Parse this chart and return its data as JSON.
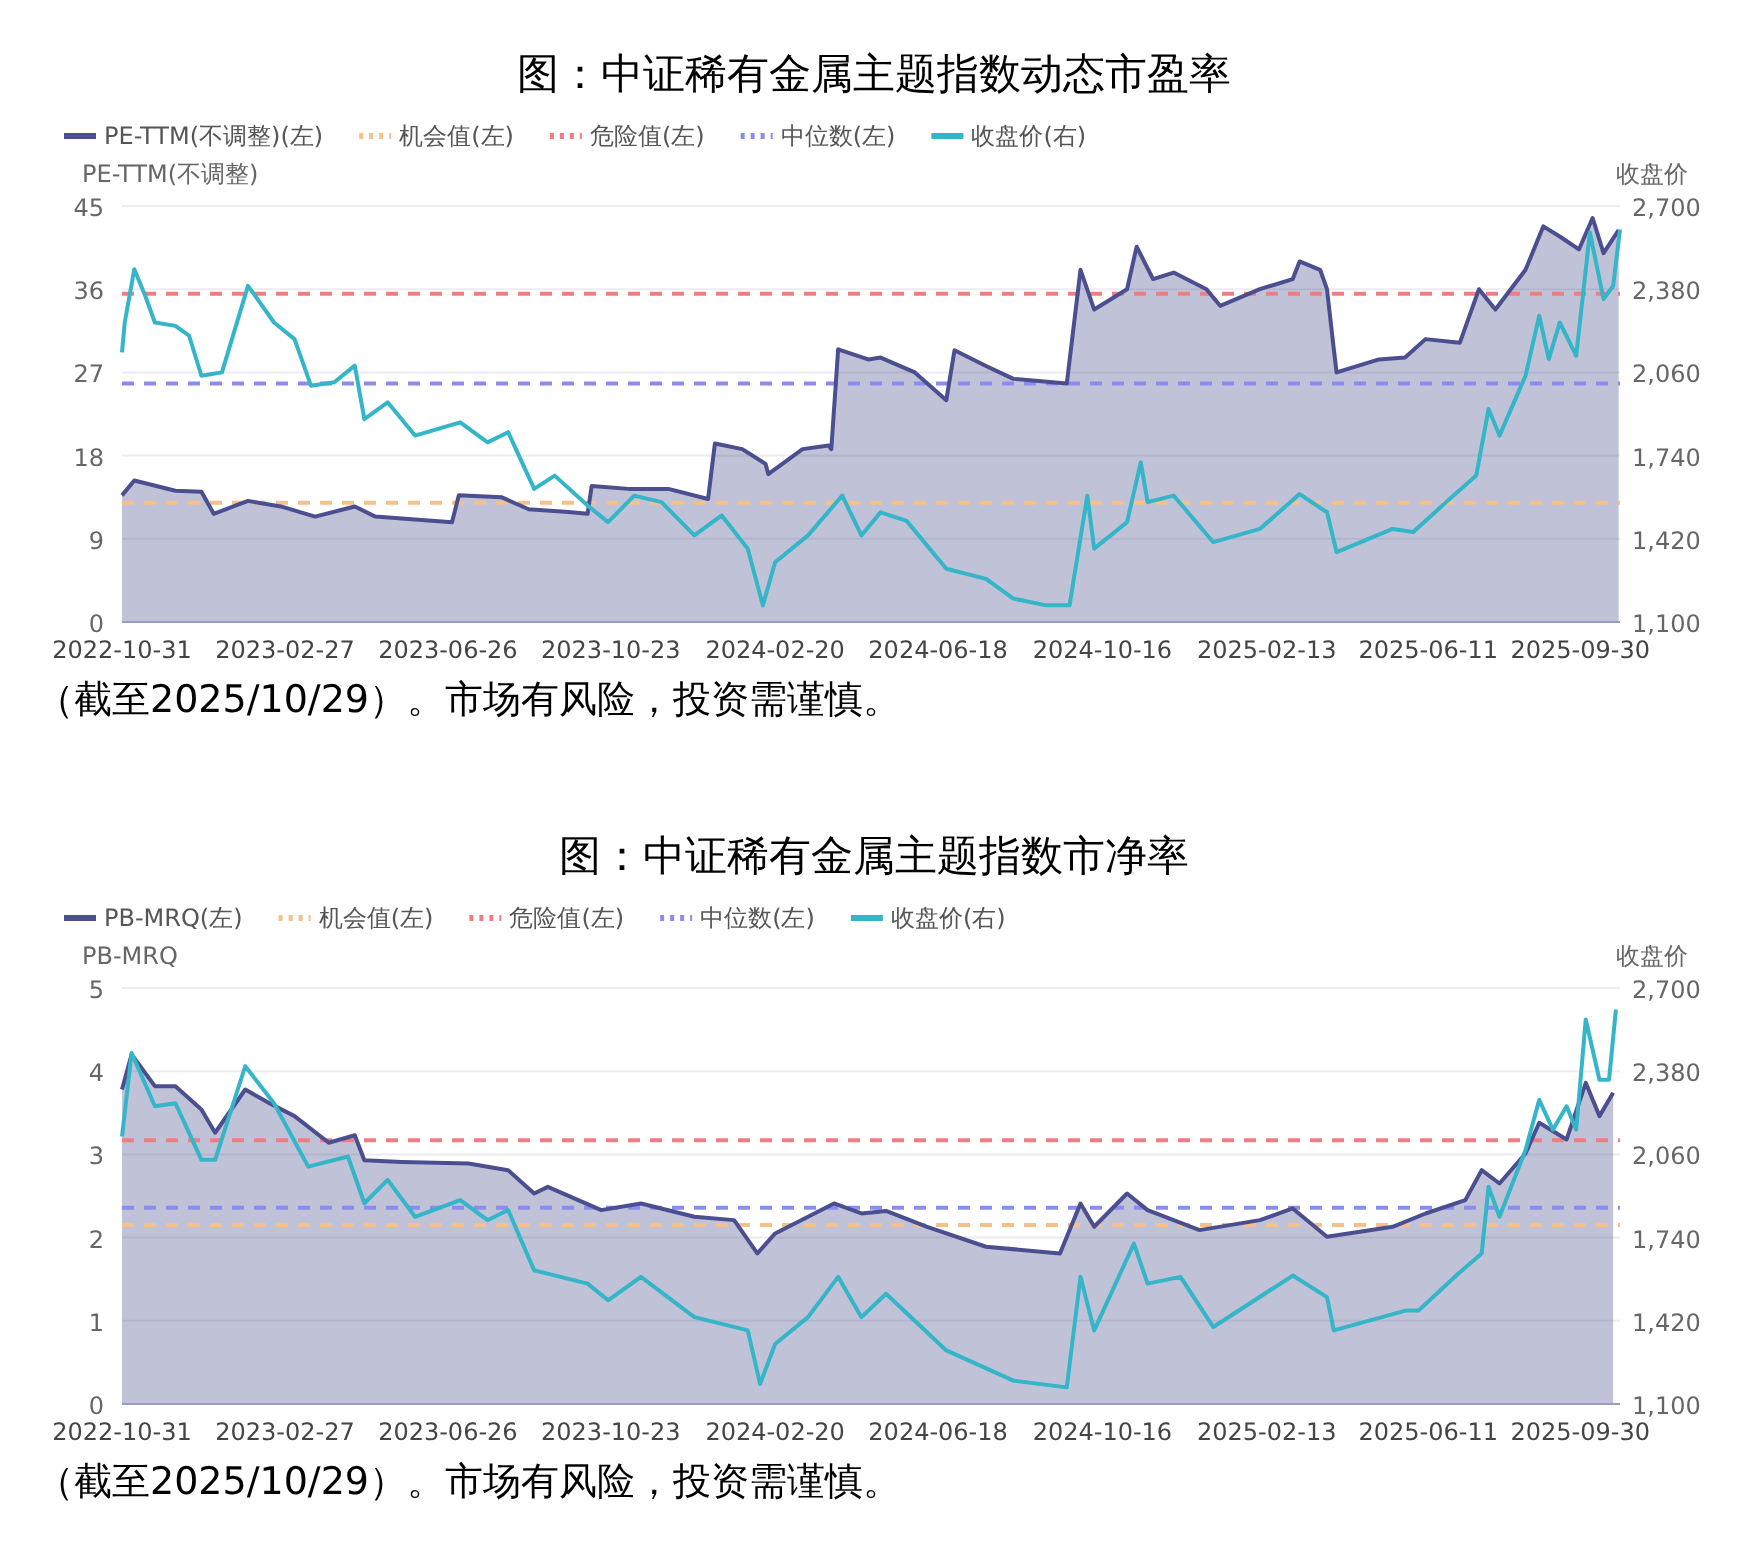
{
  "chart_data": [
    {
      "type": "area",
      "title": "图：中证稀有金属主题指数动态市盈率",
      "ylabel": "PE-TTM(不调整)",
      "y2label": "收盘价",
      "grid": "y",
      "legend": "top left",
      "marker": "none",
      "xlim": [
        "2022-10-31",
        "2025-10-29"
      ],
      "xticks": [
        "2022-10-31",
        "2023-02-27",
        "2023-06-26",
        "2023-10-23",
        "2024-02-20",
        "2024-06-18",
        "2024-10-16",
        "2025-02-13",
        "2025-06-11",
        "2025-09-30"
      ],
      "ylim": [
        0,
        45
      ],
      "yticks": [
        0,
        9,
        18,
        27,
        36,
        45
      ],
      "y2lim": [
        1100,
        2700
      ],
      "y2ticks": [
        {
          "value": 1100,
          "label": "1,100"
        },
        {
          "value": 1420,
          "label": "1,420"
        },
        {
          "value": 1740,
          "label": "1,740"
        },
        {
          "value": 2060,
          "label": "2,060"
        },
        {
          "value": 2380,
          "label": "2,380"
        },
        {
          "value": 2700,
          "label": "2,700"
        }
      ],
      "series": [
        {
          "name": "PE-TTM(不调整)(左)",
          "color": "#4b4f8f",
          "x": [
            "2022-10-31",
            "2022-11-09",
            "2022-12-09",
            "2022-12-28",
            "2023-01-06",
            "2023-01-31",
            "2023-02-24",
            "2023-03-21",
            "2023-04-19",
            "2023-05-04",
            "2023-06-02",
            "2023-06-29",
            "2023-07-04",
            "2023-08-04",
            "2023-08-24",
            "2023-09-22",
            "2023-10-06",
            "2023-10-09",
            "2023-11-05",
            "2023-12-04",
            "2024-01-02",
            "2024-01-07",
            "2024-01-27",
            "2024-02-13",
            "2024-02-15",
            "2024-03-11",
            "2024-03-30",
            "2024-04-01",
            "2024-04-06",
            "2024-04-28",
            "2024-05-07",
            "2024-06-01",
            "2024-06-24",
            "2024-06-30",
            "2024-07-23",
            "2024-08-12",
            "2024-09-20",
            "2024-09-30",
            "2024-10-10",
            "2024-11-03",
            "2024-11-10",
            "2024-11-22",
            "2024-12-07",
            "2024-12-31",
            "2025-01-10",
            "2025-02-08",
            "2025-03-04",
            "2025-03-09",
            "2025-03-24",
            "2025-03-29",
            "2025-04-03",
            "2025-04-05",
            "2025-05-06",
            "2025-05-25",
            "2025-06-09",
            "2025-07-04",
            "2025-07-18",
            "2025-07-30",
            "2025-08-21",
            "2025-09-03",
            "2025-09-15",
            "2025-09-29",
            "2025-10-09",
            "2025-10-17",
            "2025-10-28"
          ],
          "values": [
            13.7,
            15.3,
            14.2,
            14.1,
            11.7,
            13.1,
            12.5,
            11.4,
            12.5,
            11.4,
            11.1,
            10.8,
            13.7,
            13.5,
            12.2,
            11.9,
            11.7,
            14.7,
            14.4,
            14.4,
            13.3,
            19.3,
            18.7,
            17.1,
            16.0,
            18.7,
            19.1,
            18.7,
            29.5,
            28.4,
            28.6,
            27.0,
            24.0,
            29.4,
            27.7,
            26.3,
            25.8,
            38.1,
            33.8,
            36.0,
            40.6,
            37.1,
            37.8,
            36.0,
            34.2,
            36.0,
            37.1,
            39.0,
            38.1,
            36.0,
            29.5,
            27.0,
            28.4,
            28.6,
            30.6,
            30.2,
            36.0,
            33.8,
            38.1,
            42.8,
            41.7,
            40.3,
            43.7,
            39.9,
            42.4
          ]
        },
        {
          "name": "收盘价(右)",
          "type": "line",
          "axis": "y2",
          "color": "#35b5c8",
          "x": [
            "2022-10-31",
            "2022-11-02",
            "2022-11-09",
            "2022-11-17",
            "2022-11-24",
            "2022-12-09",
            "2022-12-19",
            "2022-12-28",
            "2023-01-12",
            "2023-01-31",
            "2023-02-19",
            "2023-03-06",
            "2023-03-18",
            "2023-04-04",
            "2023-04-19",
            "2023-04-26",
            "2023-05-13",
            "2023-06-02",
            "2023-07-05",
            "2023-07-25",
            "2023-08-09",
            "2023-08-28",
            "2023-09-12",
            "2023-10-06",
            "2023-10-21",
            "2023-11-09",
            "2023-11-29",
            "2023-12-23",
            "2024-01-12",
            "2024-01-31",
            "2024-02-11",
            "2024-02-20",
            "2024-03-15",
            "2024-04-09",
            "2024-04-23",
            "2024-05-07",
            "2024-05-26",
            "2024-06-24",
            "2024-07-23",
            "2024-08-12",
            "2024-09-05",
            "2024-09-22",
            "2024-10-05",
            "2024-10-10",
            "2024-11-03",
            "2024-11-13",
            "2024-11-18",
            "2024-12-07",
            "2025-01-05",
            "2025-02-08",
            "2025-03-09",
            "2025-03-29",
            "2025-04-05",
            "2025-05-16",
            "2025-05-31",
            "2025-06-24",
            "2025-07-16",
            "2025-07-25",
            "2025-08-02",
            "2025-08-21",
            "2025-08-31",
            "2025-09-07",
            "2025-09-15",
            "2025-09-27",
            "2025-10-07",
            "2025-10-17",
            "2025-10-24",
            "2025-10-29"
          ],
          "values": [
            2137,
            2252,
            2457,
            2354,
            2252,
            2239,
            2201,
            2047,
            2060,
            2393,
            2252,
            2188,
            2009,
            2022,
            2086,
            1880,
            1945,
            1817,
            1868,
            1791,
            1830,
            1612,
            1663,
            1548,
            1484,
            1586,
            1561,
            1433,
            1510,
            1382,
            1164,
            1330,
            1433,
            1586,
            1433,
            1522,
            1489,
            1305,
            1266,
            1190,
            1164,
            1164,
            1586,
            1382,
            1484,
            1714,
            1561,
            1586,
            1407,
            1458,
            1592,
            1522,
            1369,
            1458,
            1446,
            1561,
            1663,
            1919,
            1817,
            2047,
            2278,
            2111,
            2252,
            2124,
            2598,
            2342,
            2393,
            2610
          ]
        }
      ],
      "ref_lines": [
        {
          "axis": "y",
          "value": 12.9,
          "label": "机会值(左)",
          "color": "#f5c08a",
          "line_style": "dashed"
        },
        {
          "axis": "y",
          "value": 35.5,
          "label": "危险值(左)",
          "color": "#f07c84",
          "line_style": "dashed"
        },
        {
          "axis": "y",
          "value": 25.8,
          "label": "中位数(左)",
          "color": "#8c8cf0",
          "line_style": "dashed"
        }
      ],
      "annotations": [
        "（截至2025/10/29）。市场有风险，投资需谨慎。"
      ]
    },
    {
      "type": "area",
      "title": "图：中证稀有金属主题指数市净率",
      "ylabel": "PB-MRQ",
      "y2label": "收盘价",
      "grid": "y",
      "legend": "top left",
      "marker": "none",
      "xlim": [
        "2022-10-31",
        "2025-10-29"
      ],
      "xticks": [
        "2022-10-31",
        "2023-02-27",
        "2023-06-26",
        "2023-10-23",
        "2024-02-20",
        "2024-06-18",
        "2024-10-16",
        "2025-02-13",
        "2025-06-11",
        "2025-09-30"
      ],
      "ylim": [
        0,
        5
      ],
      "yticks": [
        0,
        1,
        2,
        3,
        4,
        5
      ],
      "y2lim": [
        1100,
        2700
      ],
      "y2ticks": [
        {
          "value": 1100,
          "label": "1,100"
        },
        {
          "value": 1420,
          "label": "1,420"
        },
        {
          "value": 1740,
          "label": "1,740"
        },
        {
          "value": 2060,
          "label": "2,060"
        },
        {
          "value": 2380,
          "label": "2,380"
        },
        {
          "value": 2700,
          "label": "2,700"
        }
      ],
      "series": [
        {
          "name": "PB-MRQ(左)",
          "color": "#4b4f8f",
          "x": [
            "2022-10-31",
            "2022-11-07",
            "2022-11-24",
            "2022-12-09",
            "2022-12-28",
            "2023-01-07",
            "2023-01-29",
            "2023-02-15",
            "2023-03-06",
            "2023-03-31",
            "2023-04-19",
            "2023-04-26",
            "2023-05-23",
            "2023-07-11",
            "2023-08-09",
            "2023-08-28",
            "2023-09-07",
            "2023-10-16",
            "2023-11-14",
            "2023-12-23",
            "2024-01-21",
            "2024-02-07",
            "2024-02-20",
            "2024-04-03",
            "2024-04-23",
            "2024-05-11",
            "2024-06-10",
            "2024-07-23",
            "2024-09-15",
            "2024-09-30",
            "2024-10-10",
            "2024-11-03",
            "2024-11-18",
            "2024-12-26",
            "2025-02-08",
            "2025-03-04",
            "2025-03-29",
            "2025-05-16",
            "2025-06-09",
            "2025-07-08",
            "2025-07-20",
            "2025-08-02",
            "2025-08-21",
            "2025-08-31",
            "2025-09-20",
            "2025-10-04",
            "2025-10-14",
            "2025-10-24"
          ],
          "values": [
            3.78,
            4.2,
            3.82,
            3.82,
            3.54,
            3.26,
            3.78,
            3.62,
            3.46,
            3.14,
            3.23,
            2.93,
            2.91,
            2.89,
            2.81,
            2.53,
            2.61,
            2.33,
            2.41,
            2.25,
            2.21,
            1.81,
            2.05,
            2.41,
            2.29,
            2.32,
            2.13,
            1.89,
            1.81,
            2.41,
            2.13,
            2.53,
            2.33,
            2.09,
            2.21,
            2.35,
            2.01,
            2.13,
            2.29,
            2.45,
            2.81,
            2.65,
            3.01,
            3.38,
            3.18,
            3.86,
            3.46,
            3.74
          ]
        },
        {
          "name": "收盘价(右)",
          "type": "line",
          "axis": "y2",
          "color": "#35b5c8",
          "x": [
            "2022-10-31",
            "2022-11-07",
            "2022-11-24",
            "2022-12-09",
            "2022-12-28",
            "2023-01-07",
            "2023-01-29",
            "2023-02-19",
            "2023-03-16",
            "2023-04-14",
            "2023-04-26",
            "2023-05-13",
            "2023-06-02",
            "2023-07-05",
            "2023-07-25",
            "2023-08-09",
            "2023-08-28",
            "2023-10-06",
            "2023-10-21",
            "2023-11-14",
            "2023-12-23",
            "2024-01-31",
            "2024-02-09",
            "2024-02-20",
            "2024-03-15",
            "2024-04-06",
            "2024-04-23",
            "2024-05-11",
            "2024-06-24",
            "2024-08-12",
            "2024-09-20",
            "2024-09-30",
            "2024-10-10",
            "2024-11-08",
            "2024-11-18",
            "2024-12-12",
            "2025-01-05",
            "2025-03-04",
            "2025-03-29",
            "2025-04-03",
            "2025-05-26",
            "2025-06-04",
            "2025-07-03",
            "2025-07-20",
            "2025-07-25",
            "2025-08-02",
            "2025-08-21",
            "2025-08-31",
            "2025-09-10",
            "2025-09-20",
            "2025-09-27",
            "2025-10-04",
            "2025-10-14",
            "2025-10-21",
            "2025-10-26"
          ],
          "values": [
            2129,
            2450,
            2245,
            2257,
            2039,
            2039,
            2399,
            2257,
            2013,
            2052,
            1872,
            1962,
            1820,
            1884,
            1807,
            1846,
            1614,
            1563,
            1499,
            1589,
            1434,
            1383,
            1177,
            1331,
            1434,
            1589,
            1434,
            1524,
            1306,
            1190,
            1164,
            1589,
            1383,
            1717,
            1563,
            1589,
            1396,
            1594,
            1511,
            1383,
            1460,
            1460,
            1602,
            1679,
            1936,
            1820,
            2077,
            2270,
            2155,
            2245,
            2155,
            2579,
            2347,
            2347,
            2617
          ]
        }
      ],
      "ref_lines": [
        {
          "axis": "y",
          "value": 2.15,
          "label": "机会值(左)",
          "color": "#f5c08a",
          "line_style": "dashed"
        },
        {
          "axis": "y",
          "value": 3.17,
          "label": "危险值(左)",
          "color": "#f07c84",
          "line_style": "dashed"
        },
        {
          "axis": "y",
          "value": 2.36,
          "label": "中位数(左)",
          "color": "#8c8cf0",
          "line_style": "dashed"
        }
      ],
      "annotations": [
        "（截至2025/10/29）。市场有风险，投资需谨慎。"
      ]
    }
  ]
}
